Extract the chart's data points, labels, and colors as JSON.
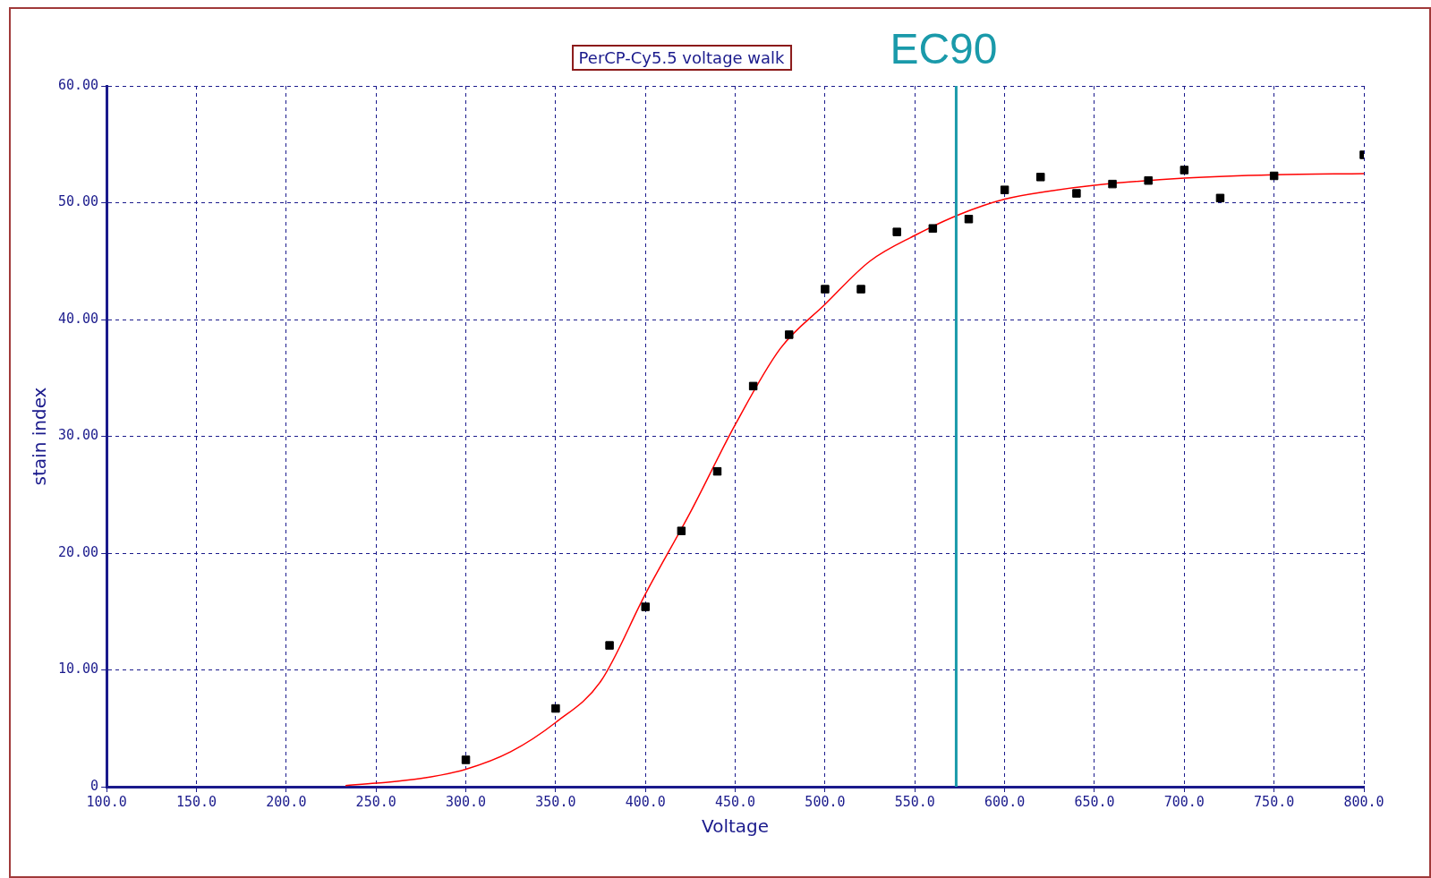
{
  "chart_data": {
    "type": "scatter",
    "title": "PerCP-Cy5.5 voltage walk",
    "xlabel": "Voltage",
    "ylabel": "stain index",
    "xlim": [
      100,
      800
    ],
    "xticks": [
      {
        "value": 100,
        "label": "100.0"
      },
      {
        "value": 150,
        "label": "150.0"
      },
      {
        "value": 200,
        "label": "200.0"
      },
      {
        "value": 250,
        "label": "250.0"
      },
      {
        "value": 300,
        "label": "300.0"
      },
      {
        "value": 350,
        "label": "350.0"
      },
      {
        "value": 400,
        "label": "400.0"
      },
      {
        "value": 450,
        "label": "450.0"
      },
      {
        "value": 500,
        "label": "500.0"
      },
      {
        "value": 550,
        "label": "550.0"
      },
      {
        "value": 600,
        "label": "600.0"
      },
      {
        "value": 650,
        "label": "650.0"
      },
      {
        "value": 700,
        "label": "700.0"
      },
      {
        "value": 750,
        "label": "750.0"
      },
      {
        "value": 800,
        "label": "800.0"
      }
    ],
    "ylim": [
      0,
      60
    ],
    "yticks": [
      0,
      {
        "value": 10,
        "label": "10.00"
      },
      {
        "value": 20,
        "label": "20.00"
      },
      {
        "value": 30,
        "label": "30.00"
      },
      {
        "value": 40,
        "label": "40.00"
      },
      {
        "value": 50,
        "label": "50.00"
      },
      {
        "value": 60,
        "label": "60.00"
      }
    ],
    "grid": true,
    "marker": "square",
    "series": [
      {
        "color": "#000000",
        "x": [
          300,
          350,
          380,
          400,
          420,
          440,
          460,
          480,
          500,
          520,
          540,
          560,
          580,
          600,
          620,
          640,
          660,
          680,
          700,
          720,
          750,
          800
        ],
        "values": [
          2.3,
          6.7,
          12.1,
          15.4,
          21.9,
          27.0,
          34.3,
          38.7,
          42.6,
          42.6,
          47.5,
          47.8,
          48.6,
          51.1,
          52.2,
          50.8,
          51.6,
          51.9,
          52.8,
          50.4,
          52.3,
          54.1
        ]
      },
      {
        "type": "line",
        "color": "#ff0000",
        "marker": "none",
        "x": [
          233,
          250,
          275,
          300,
          325,
          350,
          375,
          400,
          425,
          450,
          475,
          500,
          525,
          550,
          575,
          600,
          625,
          650,
          700,
          750,
          800
        ],
        "values": [
          0.1,
          0.3,
          0.7,
          1.5,
          3.0,
          5.5,
          9.0,
          16.5,
          23.5,
          31.0,
          37.5,
          41.3,
          45.0,
          47.2,
          49.0,
          50.3,
          51.0,
          51.5,
          52.1,
          52.4,
          52.5
        ]
      }
    ],
    "ref_lines": [
      {
        "axis": "x",
        "value": 573,
        "label": "EC90",
        "color": "#1a9aaa"
      }
    ]
  }
}
